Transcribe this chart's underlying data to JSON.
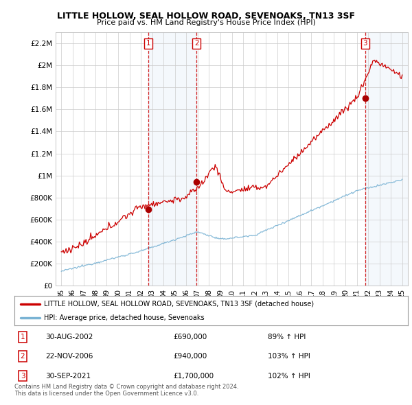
{
  "title": "LITTLE HOLLOW, SEAL HOLLOW ROAD, SEVENOAKS, TN13 3SF",
  "subtitle": "Price paid vs. HM Land Registry's House Price Index (HPI)",
  "hpi_color": "#7ab3d4",
  "price_color": "#cc0000",
  "dashed_color": "#cc0000",
  "background_color": "#ffffff",
  "grid_color": "#cccccc",
  "sale_marker_color": "#aa0000",
  "ylim": [
    0,
    2300000
  ],
  "yticks": [
    0,
    200000,
    400000,
    600000,
    800000,
    1000000,
    1200000,
    1400000,
    1600000,
    1800000,
    2000000,
    2200000
  ],
  "ytick_labels": [
    "£0",
    "£200K",
    "£400K",
    "£600K",
    "£800K",
    "£1M",
    "£1.2M",
    "£1.4M",
    "£1.6M",
    "£1.8M",
    "£2M",
    "£2.2M"
  ],
  "xlim_start": 1994.5,
  "xlim_end": 2025.5,
  "sale_dates": [
    2002.66,
    2006.9,
    2021.75
  ],
  "sale_prices": [
    690000,
    940000,
    1700000
  ],
  "sale_labels": [
    "1",
    "2",
    "3"
  ],
  "span1_start": 2002.66,
  "span1_end": 2006.9,
  "span2_start": 2021.75,
  "span2_end": 2025.5,
  "legend_entries": [
    "LITTLE HOLLOW, SEAL HOLLOW ROAD, SEVENOAKS, TN13 3SF (detached house)",
    "HPI: Average price, detached house, Sevenoaks"
  ],
  "table_rows": [
    {
      "label": "1",
      "date": "30-AUG-2002",
      "price": "£690,000",
      "hpi": "89% ↑ HPI"
    },
    {
      "label": "2",
      "date": "22-NOV-2006",
      "price": "£940,000",
      "hpi": "103% ↑ HPI"
    },
    {
      "label": "3",
      "date": "30-SEP-2021",
      "price": "£1,700,000",
      "hpi": "102% ↑ HPI"
    }
  ],
  "footnote1": "Contains HM Land Registry data © Crown copyright and database right 2024.",
  "footnote2": "This data is licensed under the Open Government Licence v3.0."
}
